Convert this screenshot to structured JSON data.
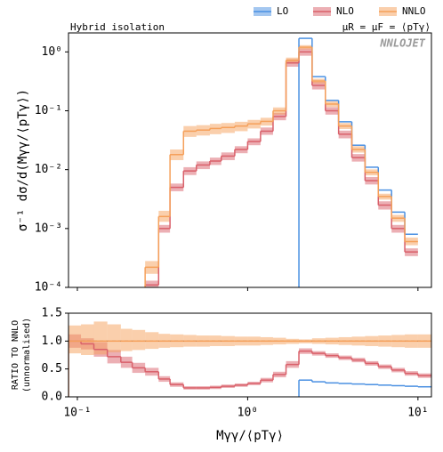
{
  "chart_data": [
    {
      "type": "histogram",
      "ylog": true,
      "xlog": true,
      "ylabel": "σ⁻¹ dσ/d(Mγγ/⟨pTγ⟩)",
      "annotations": [
        "Hybrid isolation",
        "μR = μF = ⟨pTγ⟩",
        "NNLOJET"
      ],
      "xlim": [
        0.0887,
        12
      ],
      "ylim": [
        0.0001,
        2.1
      ],
      "yticks": [
        {
          "value": 0.0001,
          "label": "10⁻⁴"
        },
        {
          "value": 0.001,
          "label": "10⁻³"
        },
        {
          "value": 0.01,
          "label": "10⁻²"
        },
        {
          "value": 0.1,
          "label": "10⁻¹"
        },
        {
          "value": 1,
          "label": "10⁰"
        }
      ],
      "bins": [
        0.25,
        0.3,
        0.35,
        0.42,
        0.5,
        0.6,
        0.7,
        0.84,
        1.0,
        1.19,
        1.41,
        1.68,
        2.0,
        2.39,
        2.86,
        3.42,
        4.09,
        4.89,
        5.85,
        7.0,
        8.37,
        10
      ],
      "series": [
        {
          "name": "LO",
          "color": "#4a90e2",
          "values": [
            null,
            null,
            null,
            null,
            null,
            null,
            null,
            null,
            null,
            null,
            null,
            null,
            1.7,
            0.38,
            0.15,
            0.065,
            0.026,
            0.011,
            0.0045,
            0.0019,
            0.0008
          ]
        },
        {
          "name": "NLO",
          "color": "#d9606a",
          "values": [
            0.00011,
            0.001,
            0.005,
            0.0095,
            0.012,
            0.014,
            0.017,
            0.022,
            0.03,
            0.045,
            0.08,
            0.65,
            1.0,
            0.27,
            0.1,
            0.04,
            0.016,
            0.0065,
            0.0025,
            0.001,
            0.0004
          ],
          "band_low": [
            9e-05,
            0.00085,
            0.0043,
            0.0081,
            0.0102,
            0.012,
            0.0145,
            0.019,
            0.026,
            0.039,
            0.069,
            0.56,
            0.86,
            0.23,
            0.086,
            0.034,
            0.0137,
            0.0056,
            0.0021,
            0.00085,
            0.00034
          ],
          "band_high": [
            0.00013,
            0.00115,
            0.0058,
            0.011,
            0.0138,
            0.016,
            0.0196,
            0.025,
            0.034,
            0.052,
            0.092,
            0.75,
            1.15,
            0.31,
            0.115,
            0.046,
            0.0184,
            0.0075,
            0.0029,
            0.00115,
            0.00046
          ]
        },
        {
          "name": "NNLO",
          "color": "#f5a05a",
          "values": [
            0.00022,
            0.0016,
            0.018,
            0.045,
            0.047,
            0.05,
            0.052,
            0.055,
            0.06,
            0.066,
            0.1,
            0.72,
            1.2,
            0.32,
            0.13,
            0.055,
            0.022,
            0.009,
            0.0035,
            0.0015,
            0.0006
          ],
          "band_low": [
            0.00017,
            0.0013,
            0.0145,
            0.036,
            0.038,
            0.04,
            0.042,
            0.045,
            0.05,
            0.056,
            0.086,
            0.63,
            1.1,
            0.29,
            0.116,
            0.049,
            0.0195,
            0.008,
            0.0031,
            0.0013,
            0.00052
          ],
          "band_high": [
            0.00028,
            0.002,
            0.022,
            0.055,
            0.057,
            0.06,
            0.062,
            0.065,
            0.07,
            0.076,
            0.114,
            0.8,
            1.3,
            0.35,
            0.145,
            0.062,
            0.025,
            0.0101,
            0.0039,
            0.0017,
            0.0007
          ]
        }
      ]
    },
    {
      "type": "histogram",
      "ylog": false,
      "xlog": true,
      "xlabel": "Mγγ/⟨pTγ⟩",
      "ylabel": [
        "RATIO TO NNLO",
        "(unnormalised)"
      ],
      "xlim": [
        0.0887,
        12
      ],
      "ylim": [
        0,
        1.5
      ],
      "xticks": [
        {
          "value": 0.1,
          "label": "10⁻¹"
        },
        {
          "value": 1,
          "label": "10⁰"
        },
        {
          "value": 10,
          "label": "10¹"
        }
      ],
      "yticks": [
        {
          "value": 0,
          "label": "0.0"
        },
        {
          "value": 0.5,
          "label": "0.5"
        },
        {
          "value": 1,
          "label": "1.0"
        },
        {
          "value": 1.5,
          "label": "1.5"
        }
      ],
      "ref_line": 1,
      "bins": [
        0.0887,
        0.105,
        0.125,
        0.15,
        0.18,
        0.21,
        0.25,
        0.3,
        0.35,
        0.42,
        0.5,
        0.6,
        0.7,
        0.84,
        1.0,
        1.19,
        1.41,
        1.68,
        2.0,
        2.39,
        2.86,
        3.42,
        4.09,
        4.89,
        5.85,
        7.0,
        8.37,
        10,
        12
      ],
      "series": [
        {
          "color": "#4a90e2",
          "values": [
            null,
            null,
            null,
            null,
            null,
            null,
            null,
            null,
            null,
            null,
            null,
            null,
            null,
            null,
            null,
            null,
            null,
            null,
            0.3,
            0.27,
            0.25,
            0.24,
            0.23,
            0.22,
            0.21,
            0.2,
            0.19,
            0.18
          ]
        },
        {
          "color": "#d9606a",
          "values": [
            1.0,
            0.95,
            0.85,
            0.72,
            0.62,
            0.52,
            0.45,
            0.32,
            0.22,
            0.16,
            0.16,
            0.17,
            0.19,
            0.21,
            0.24,
            0.3,
            0.4,
            0.58,
            0.82,
            0.78,
            0.74,
            0.7,
            0.66,
            0.6,
            0.54,
            0.48,
            0.42,
            0.38
          ],
          "band_low": [
            0.88,
            0.85,
            0.72,
            0.6,
            0.52,
            0.43,
            0.38,
            0.27,
            0.18,
            0.13,
            0.13,
            0.14,
            0.16,
            0.18,
            0.21,
            0.26,
            0.35,
            0.52,
            0.77,
            0.74,
            0.7,
            0.66,
            0.62,
            0.56,
            0.5,
            0.44,
            0.38,
            0.34
          ],
          "band_high": [
            1.12,
            1.05,
            0.98,
            0.84,
            0.72,
            0.61,
            0.52,
            0.37,
            0.26,
            0.19,
            0.19,
            0.2,
            0.22,
            0.24,
            0.27,
            0.34,
            0.45,
            0.64,
            0.87,
            0.82,
            0.78,
            0.74,
            0.7,
            0.64,
            0.58,
            0.52,
            0.46,
            0.42
          ]
        },
        {
          "color": "#f5a05a",
          "values": [
            1,
            1,
            1,
            1,
            1,
            1,
            1,
            1,
            1,
            1,
            1,
            1,
            1,
            1,
            1,
            1,
            1,
            1,
            1,
            1,
            1,
            1,
            1,
            1,
            1,
            1,
            1,
            1
          ],
          "band_low": [
            0.78,
            0.75,
            0.76,
            0.8,
            0.82,
            0.84,
            0.86,
            0.88,
            0.89,
            0.9,
            0.9,
            0.91,
            0.91,
            0.92,
            0.92,
            0.93,
            0.94,
            0.95,
            0.96,
            0.95,
            0.94,
            0.93,
            0.92,
            0.91,
            0.9,
            0.89,
            0.88,
            0.88
          ],
          "band_high": [
            1.28,
            1.3,
            1.35,
            1.3,
            1.22,
            1.2,
            1.16,
            1.13,
            1.12,
            1.11,
            1.1,
            1.1,
            1.09,
            1.08,
            1.08,
            1.07,
            1.06,
            1.04,
            1.03,
            1.05,
            1.06,
            1.07,
            1.08,
            1.09,
            1.1,
            1.11,
            1.12,
            1.12
          ]
        }
      ]
    }
  ]
}
